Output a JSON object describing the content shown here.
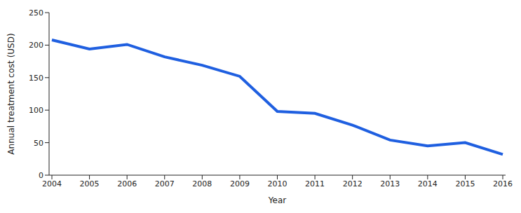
{
  "chart_data": {
    "type": "line",
    "x_label": "Year",
    "y_label": "Annual treatment cost (USD)",
    "categories": [
      "2004",
      "2005",
      "2006",
      "2007",
      "2008",
      "2009",
      "2010",
      "2011",
      "2012",
      "2013",
      "2014",
      "2015",
      "2016"
    ],
    "values": [
      208,
      194,
      201,
      182,
      169,
      152,
      98,
      95,
      77,
      54,
      45,
      50,
      32
    ],
    "color": "#1f5fe0",
    "ylim": [
      0,
      250
    ],
    "yticks": [
      0,
      50,
      100,
      150,
      200,
      250
    ],
    "grid": false
  }
}
